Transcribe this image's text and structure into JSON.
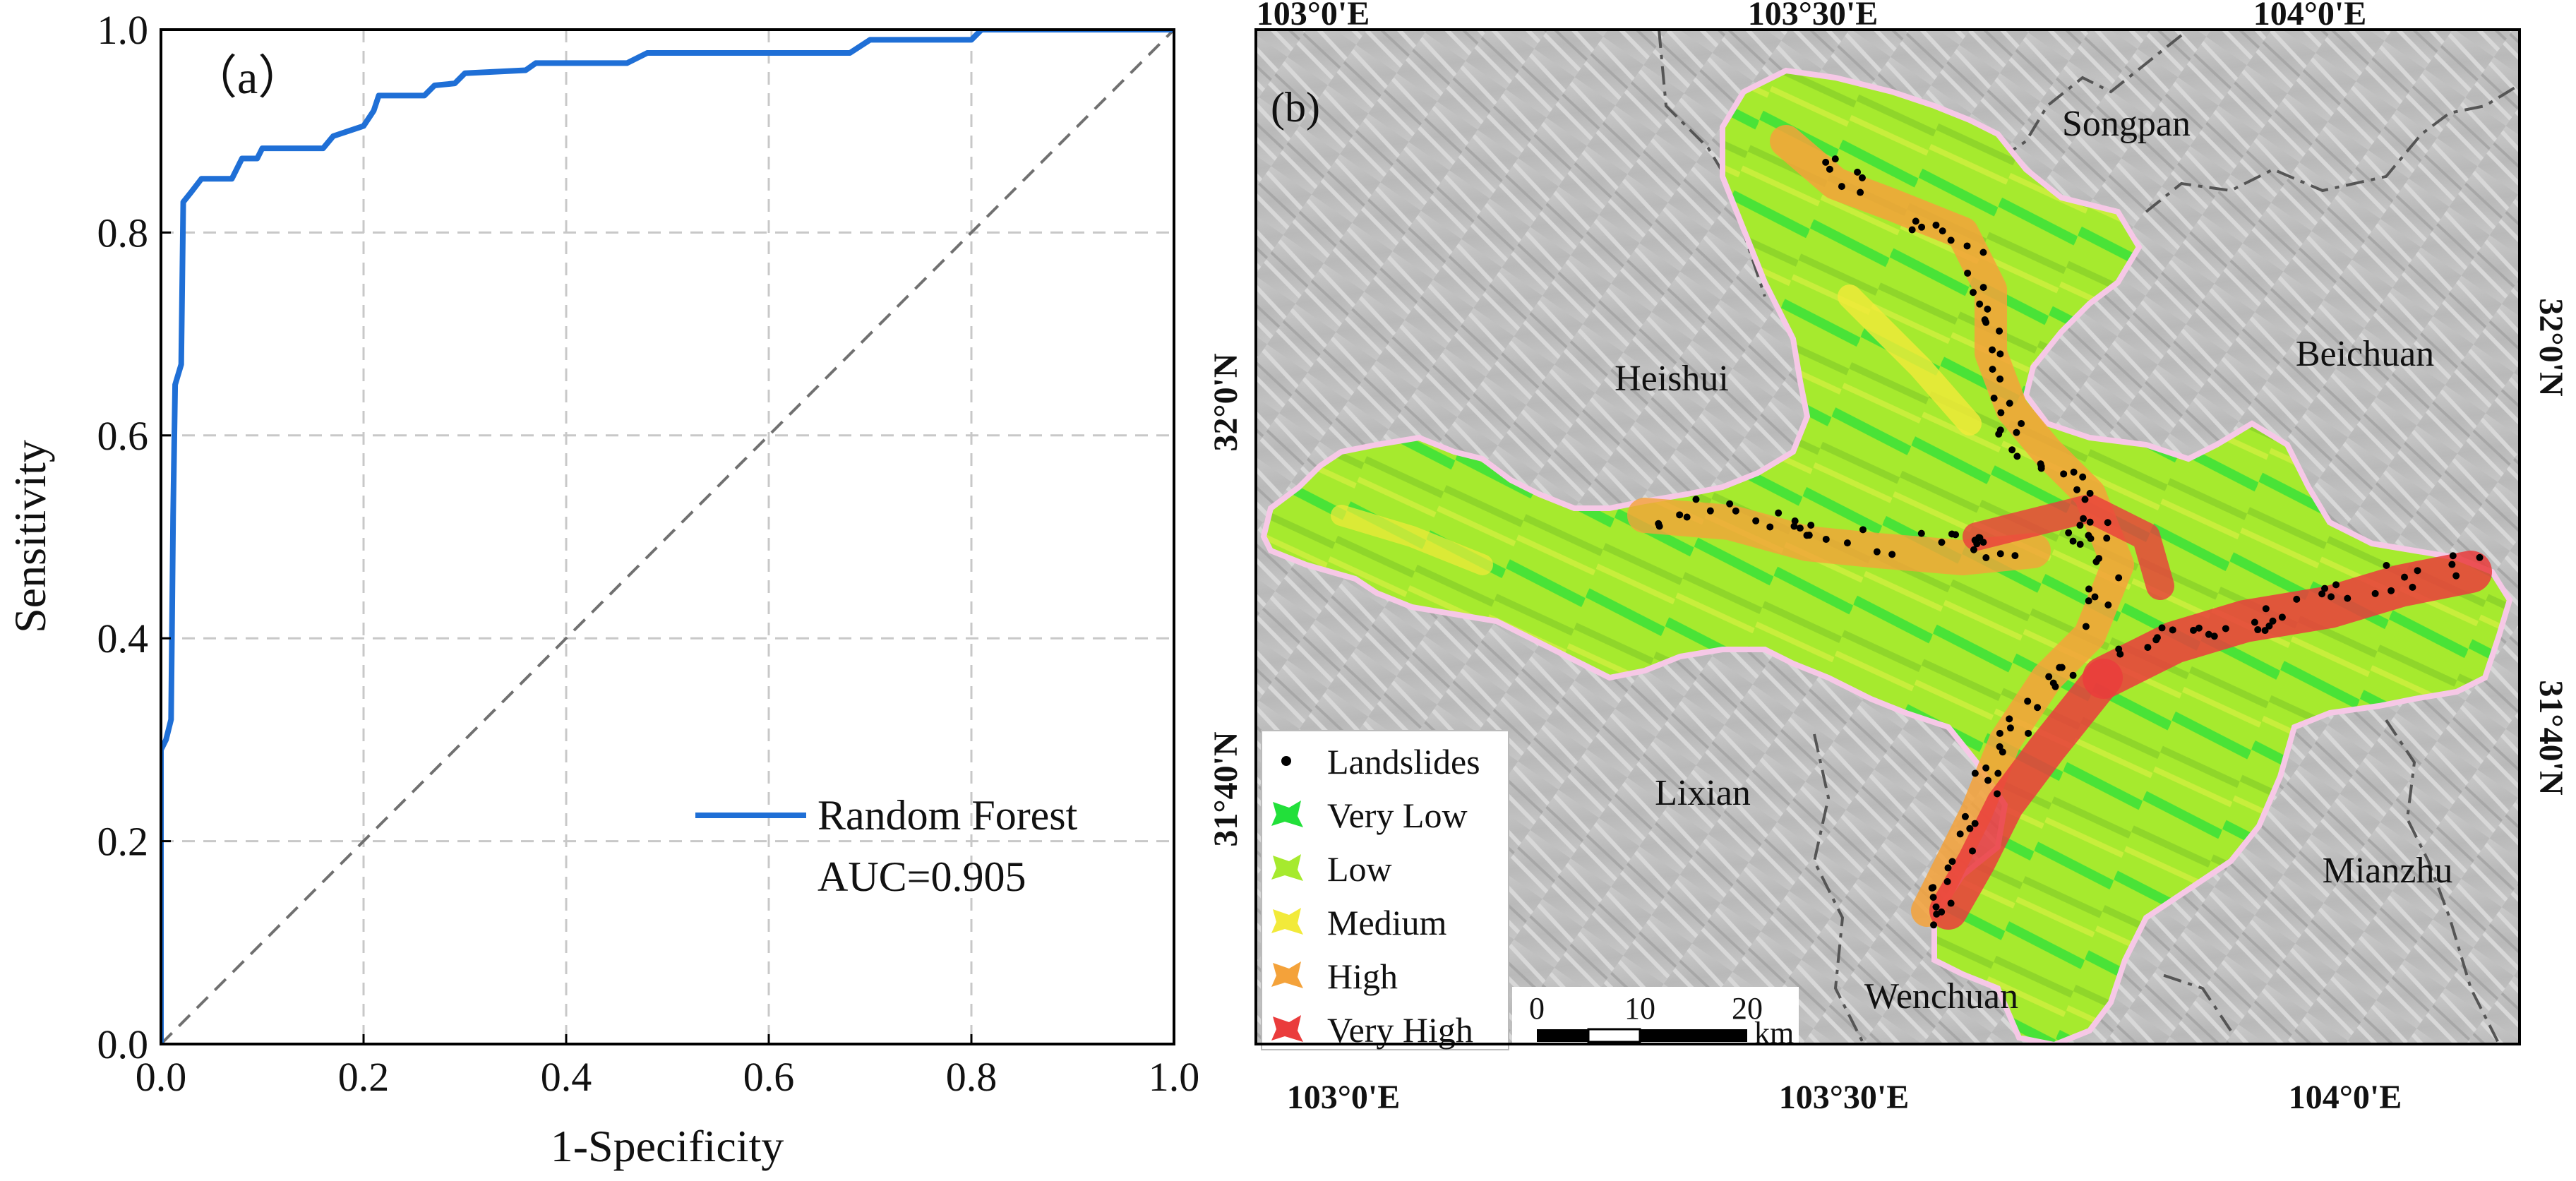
{
  "chart_data": [
    {
      "type": "line",
      "panel_label": "（a）",
      "xlabel": "1-Specificity",
      "ylabel": "Sensitivity",
      "xlim": [
        0.0,
        1.0
      ],
      "ylim": [
        0.0,
        1.0
      ],
      "x_ticks": [
        "0.0",
        "0.2",
        "0.4",
        "0.6",
        "0.8",
        "1.0"
      ],
      "y_ticks": [
        "0.0",
        "0.2",
        "0.4",
        "0.6",
        "0.8",
        "1.0"
      ],
      "grid": true,
      "legend_position": "bottom-right",
      "series": [
        {
          "name": "Random Forest",
          "color": "#1f6fd6",
          "annotation": "AUC=0.905",
          "points": [
            [
              0.0,
              0.0
            ],
            [
              0.0,
              0.29
            ],
            [
              0.005,
              0.3
            ],
            [
              0.01,
              0.32
            ],
            [
              0.012,
              0.52
            ],
            [
              0.014,
              0.65
            ],
            [
              0.02,
              0.67
            ],
            [
              0.022,
              0.83
            ],
            [
              0.03,
              0.84
            ],
            [
              0.04,
              0.853
            ],
            [
              0.07,
              0.853
            ],
            [
              0.08,
              0.873
            ],
            [
              0.095,
              0.873
            ],
            [
              0.1,
              0.883
            ],
            [
              0.16,
              0.883
            ],
            [
              0.17,
              0.895
            ],
            [
              0.2,
              0.905
            ],
            [
              0.21,
              0.92
            ],
            [
              0.215,
              0.935
            ],
            [
              0.26,
              0.935
            ],
            [
              0.27,
              0.945
            ],
            [
              0.29,
              0.947
            ],
            [
              0.3,
              0.957
            ],
            [
              0.36,
              0.96
            ],
            [
              0.37,
              0.967
            ],
            [
              0.46,
              0.967
            ],
            [
              0.48,
              0.977
            ],
            [
              0.68,
              0.977
            ],
            [
              0.7,
              0.99
            ],
            [
              0.8,
              0.99
            ],
            [
              0.81,
              1.0
            ],
            [
              1.0,
              1.0
            ]
          ]
        },
        {
          "name": "",
          "color": "#707070",
          "style": "dashed",
          "points": [
            [
              0.0,
              0.0
            ],
            [
              1.0,
              1.0
            ]
          ]
        }
      ]
    },
    {
      "type": "map",
      "panel_label": "(b)",
      "top_ticks": [
        "103°0'E",
        "103°30'E",
        "104°0'E"
      ],
      "bottom_ticks": [
        "103°0'E",
        "103°30'E",
        "104°0'E"
      ],
      "right_ticks": [
        "32°0'N",
        "31°40'N"
      ],
      "left_ticks": [
        "32°0'N",
        "31°40'N"
      ],
      "place_labels": [
        "Songpan",
        "Heishui",
        "Beichuan",
        "Lixian",
        "Mianzhu",
        "Wenchuan"
      ],
      "legend": [
        {
          "label": "Landslides",
          "symbol": "dot",
          "color": "#000000"
        },
        {
          "label": "Very Low",
          "symbol": "patch",
          "color": "#22e03a"
        },
        {
          "label": "Low",
          "symbol": "patch",
          "color": "#a6ea2e"
        },
        {
          "label": "Medium",
          "symbol": "patch",
          "color": "#f2ea3a"
        },
        {
          "label": "High",
          "symbol": "patch",
          "color": "#f4a23a"
        },
        {
          "label": "Very High",
          "symbol": "patch",
          "color": "#ea3c3c"
        }
      ],
      "scale_bar": {
        "ticks": [
          "0",
          "10",
          "20"
        ],
        "unit": "km"
      }
    }
  ]
}
